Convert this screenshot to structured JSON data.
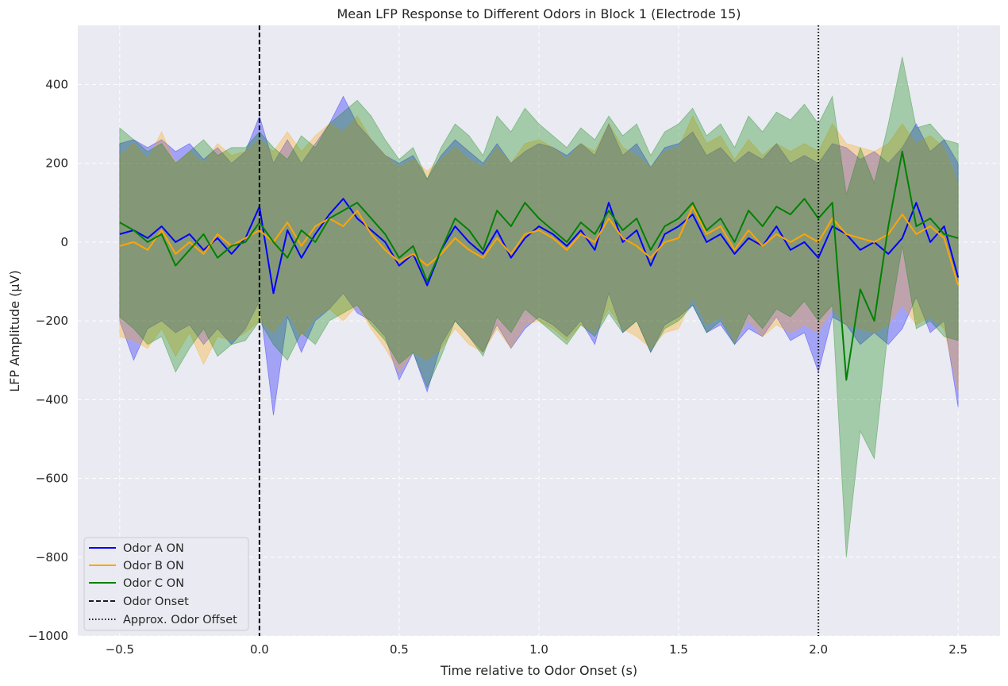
{
  "chart_data": {
    "type": "line",
    "title": "Mean LFP Response to Different Odors in Block 1 (Electrode 15)",
    "xlabel": "Time relative to Odor Onset (s)",
    "ylabel": "LFP Amplitude (μV)",
    "xlim": [
      -0.65,
      2.65
    ],
    "ylim": [
      -1000,
      550
    ],
    "xticks": [
      -0.5,
      0.0,
      0.5,
      1.0,
      1.5,
      2.0,
      2.5
    ],
    "xtick_labels": [
      "−0.5",
      "0.0",
      "0.5",
      "1.0",
      "1.5",
      "2.0",
      "2.5"
    ],
    "yticks": [
      -1000,
      -800,
      -600,
      -400,
      -200,
      0,
      200,
      400
    ],
    "ytick_labels": [
      "−1000",
      "−800",
      "−600",
      "−400",
      "−200",
      "0",
      "200",
      "400"
    ],
    "grid": true,
    "legend_position": "lower-left",
    "x": [
      -0.5,
      -0.45,
      -0.4,
      -0.35,
      -0.3,
      -0.25,
      -0.2,
      -0.15,
      -0.1,
      -0.05,
      0.0,
      0.05,
      0.1,
      0.15,
      0.2,
      0.25,
      0.3,
      0.35,
      0.4,
      0.45,
      0.5,
      0.55,
      0.6,
      0.65,
      0.7,
      0.75,
      0.8,
      0.85,
      0.9,
      0.95,
      1.0,
      1.05,
      1.1,
      1.15,
      1.2,
      1.25,
      1.3,
      1.35,
      1.4,
      1.45,
      1.5,
      1.55,
      1.6,
      1.65,
      1.7,
      1.75,
      1.8,
      1.85,
      1.9,
      1.95,
      2.0,
      2.05,
      2.1,
      2.15,
      2.2,
      2.25,
      2.3,
      2.35,
      2.4,
      2.45,
      2.5
    ],
    "series": [
      {
        "name": "Odor A ON",
        "color": "#0000ff",
        "values": [
          20,
          30,
          10,
          40,
          0,
          20,
          -20,
          10,
          -30,
          10,
          90,
          -130,
          30,
          -40,
          20,
          70,
          110,
          60,
          30,
          0,
          -60,
          -30,
          -110,
          -20,
          40,
          0,
          -30,
          30,
          -40,
          10,
          40,
          20,
          -10,
          30,
          -20,
          100,
          0,
          30,
          -60,
          20,
          40,
          70,
          0,
          20,
          -30,
          10,
          -10,
          40,
          -20,
          0,
          -40,
          40,
          20,
          -20,
          0,
          -30,
          10,
          100,
          0,
          40,
          -90
        ],
        "upper": [
          250,
          260,
          240,
          260,
          230,
          250,
          210,
          240,
          200,
          230,
          320,
          200,
          260,
          200,
          250,
          300,
          370,
          300,
          260,
          220,
          200,
          220,
          160,
          220,
          260,
          230,
          200,
          250,
          200,
          230,
          250,
          240,
          220,
          250,
          220,
          300,
          220,
          250,
          190,
          240,
          250,
          280,
          220,
          240,
          200,
          230,
          210,
          250,
          200,
          220,
          200,
          250,
          240,
          210,
          230,
          200,
          240,
          300,
          230,
          260,
          200
        ],
        "lower": [
          -200,
          -300,
          -220,
          -200,
          -230,
          -210,
          -260,
          -220,
          -260,
          -220,
          -150,
          -440,
          -190,
          -280,
          -200,
          -170,
          -130,
          -180,
          -200,
          -240,
          -350,
          -280,
          -380,
          -260,
          -200,
          -240,
          -280,
          -210,
          -270,
          -220,
          -190,
          -210,
          -240,
          -200,
          -260,
          -130,
          -230,
          -200,
          -280,
          -210,
          -190,
          -160,
          -230,
          -210,
          -260,
          -220,
          -240,
          -190,
          -250,
          -230,
          -330,
          -190,
          -210,
          -260,
          -230,
          -260,
          -220,
          -140,
          -230,
          -200,
          -420
        ]
      },
      {
        "name": "Odor B ON",
        "color": "#ffa500",
        "values": [
          -10,
          0,
          -20,
          30,
          -30,
          0,
          -30,
          20,
          -10,
          10,
          30,
          0,
          50,
          -10,
          40,
          60,
          40,
          80,
          20,
          -20,
          -50,
          -30,
          -60,
          -30,
          10,
          -20,
          -40,
          10,
          -30,
          20,
          30,
          10,
          -20,
          20,
          0,
          60,
          10,
          -10,
          -40,
          0,
          10,
          90,
          20,
          40,
          -20,
          30,
          -10,
          20,
          0,
          20,
          0,
          60,
          20,
          10,
          0,
          20,
          70,
          20,
          40,
          10,
          -110
        ],
        "upper": [
          220,
          250,
          210,
          280,
          200,
          230,
          200,
          250,
          220,
          230,
          260,
          230,
          280,
          230,
          270,
          300,
          280,
          320,
          260,
          220,
          190,
          210,
          180,
          210,
          240,
          210,
          190,
          240,
          200,
          250,
          260,
          240,
          210,
          250,
          230,
          300,
          240,
          220,
          190,
          230,
          240,
          320,
          250,
          270,
          210,
          260,
          220,
          250,
          230,
          250,
          230,
          300,
          250,
          240,
          230,
          250,
          300,
          250,
          270,
          240,
          150
        ],
        "lower": [
          -240,
          -250,
          -270,
          -220,
          -290,
          -230,
          -310,
          -240,
          -250,
          -230,
          -200,
          -230,
          -180,
          -240,
          -190,
          -170,
          -200,
          -160,
          -220,
          -270,
          -330,
          -280,
          -300,
          -270,
          -220,
          -260,
          -280,
          -220,
          -270,
          -210,
          -200,
          -220,
          -250,
          -210,
          -230,
          -170,
          -220,
          -240,
          -270,
          -230,
          -220,
          -140,
          -210,
          -190,
          -250,
          -200,
          -240,
          -210,
          -230,
          -210,
          -230,
          -170,
          -210,
          -220,
          -230,
          -210,
          -160,
          -210,
          -190,
          -220,
          -380
        ]
      },
      {
        "name": "Odor C ON",
        "color": "#008000",
        "values": [
          50,
          30,
          0,
          20,
          -60,
          -20,
          20,
          -40,
          -10,
          0,
          50,
          0,
          -40,
          30,
          0,
          60,
          80,
          100,
          60,
          20,
          -40,
          -10,
          -100,
          -20,
          60,
          30,
          -20,
          80,
          40,
          100,
          60,
          30,
          0,
          50,
          20,
          80,
          30,
          60,
          -20,
          40,
          60,
          100,
          30,
          60,
          0,
          80,
          40,
          90,
          70,
          110,
          60,
          100,
          -350,
          -120,
          -200,
          40,
          230,
          40,
          60,
          20,
          10
        ],
        "upper": [
          290,
          260,
          230,
          250,
          200,
          230,
          260,
          220,
          240,
          240,
          280,
          240,
          210,
          270,
          240,
          300,
          330,
          360,
          320,
          260,
          210,
          240,
          160,
          240,
          300,
          270,
          220,
          320,
          280,
          340,
          300,
          270,
          240,
          290,
          260,
          320,
          270,
          300,
          220,
          280,
          300,
          340,
          270,
          300,
          240,
          320,
          280,
          330,
          310,
          350,
          300,
          370,
          120,
          240,
          150,
          300,
          470,
          290,
          300,
          260,
          250
        ],
        "lower": [
          -190,
          -220,
          -260,
          -240,
          -330,
          -270,
          -220,
          -290,
          -260,
          -250,
          -200,
          -260,
          -300,
          -230,
          -260,
          -200,
          -180,
          -160,
          -210,
          -250,
          -310,
          -280,
          -370,
          -290,
          -200,
          -240,
          -290,
          -190,
          -230,
          -170,
          -200,
          -230,
          -260,
          -210,
          -240,
          -180,
          -230,
          -200,
          -280,
          -220,
          -200,
          -160,
          -230,
          -200,
          -260,
          -180,
          -220,
          -170,
          -190,
          -150,
          -200,
          -160,
          -800,
          -480,
          -550,
          -220,
          -10,
          -220,
          -200,
          -240,
          -250
        ]
      }
    ],
    "vlines": [
      {
        "name": "Odor Onset",
        "x": 0.0,
        "style": "dashed",
        "color": "#000000"
      },
      {
        "name": "Approx. Odor Offset",
        "x": 2.0,
        "style": "dotted",
        "color": "#000000"
      }
    ],
    "colors": {
      "background": "#eaeaf2",
      "grid": "#ffffff",
      "text": "#262626"
    }
  }
}
